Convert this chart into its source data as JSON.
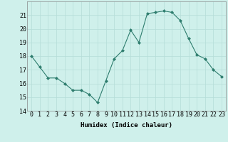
{
  "x": [
    0,
    1,
    2,
    3,
    4,
    5,
    6,
    7,
    8,
    9,
    10,
    11,
    12,
    13,
    14,
    15,
    16,
    17,
    18,
    19,
    20,
    21,
    22,
    23
  ],
  "y": [
    18.0,
    17.2,
    16.4,
    16.4,
    16.0,
    15.5,
    15.5,
    15.2,
    14.6,
    16.2,
    17.8,
    18.4,
    19.9,
    19.0,
    21.1,
    21.2,
    21.3,
    21.2,
    20.6,
    19.3,
    18.1,
    17.8,
    17.0,
    16.5
  ],
  "line_color": "#2e7d6e",
  "marker": "D",
  "marker_size": 2,
  "bg_color": "#cff0eb",
  "grid_color": "#b5ddd8",
  "xlabel": "Humidex (Indice chaleur)",
  "ylim": [
    14,
    22
  ],
  "xlim": [
    -0.5,
    23.5
  ],
  "yticks": [
    14,
    15,
    16,
    17,
    18,
    19,
    20,
    21
  ],
  "xticks": [
    0,
    1,
    2,
    3,
    4,
    5,
    6,
    7,
    8,
    9,
    10,
    11,
    12,
    13,
    14,
    15,
    16,
    17,
    18,
    19,
    20,
    21,
    22,
    23
  ],
  "label_fontsize": 6.5,
  "tick_fontsize": 6
}
